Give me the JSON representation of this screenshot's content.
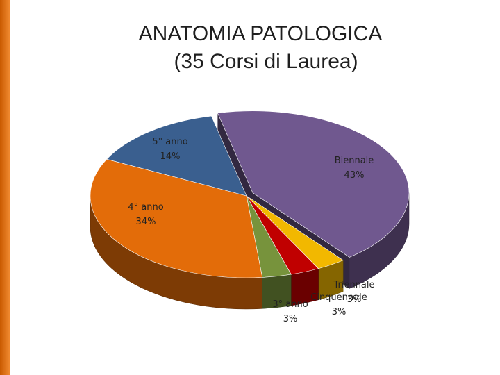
{
  "chart_data": {
    "type": "pie",
    "title": "ANATOMIA PATOLOGICA",
    "subtitle": "(35 Corsi di Laurea)",
    "categories": [
      "Biennale",
      "Triennale",
      "Cinquennale",
      "3° anno",
      "4° anno",
      "5° anno"
    ],
    "values": [
      43,
      3,
      3,
      3,
      34,
      14
    ],
    "value_labels": [
      "43%",
      "3%",
      "3%",
      "3%",
      "34%",
      "14%"
    ],
    "colors": [
      "#70588f",
      "#f2b800",
      "#c00000",
      "#77933c",
      "#e36c09",
      "#3a5f8f"
    ]
  }
}
